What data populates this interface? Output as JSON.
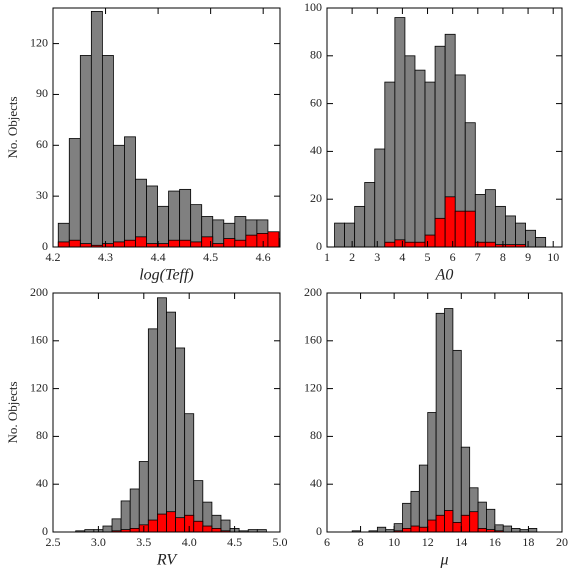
{
  "chart_data": [
    {
      "type": "histogram",
      "x_label": "log(Teff)",
      "y_label": "No. Objects",
      "bins": [
        4.21,
        4.231,
        4.252,
        4.273,
        4.294,
        4.315,
        4.336,
        4.357,
        4.378,
        4.399,
        4.42,
        4.441,
        4.462,
        4.483,
        4.504,
        4.525,
        4.546,
        4.567,
        4.588,
        4.609,
        4.63
      ],
      "series": [
        {
          "color": "#808080",
          "values": [
            14,
            64,
            113,
            139,
            113,
            60,
            65,
            40,
            36,
            24,
            33,
            34,
            25,
            18,
            16,
            14,
            18,
            16,
            16,
            5
          ]
        },
        {
          "color": "#ff0000",
          "values": [
            3,
            4,
            2,
            1,
            2,
            3,
            4,
            6,
            2,
            2,
            4,
            4,
            3,
            6,
            2,
            5,
            4,
            7,
            8,
            9
          ]
        }
      ],
      "xlim": [
        4.2,
        4.632
      ],
      "ylim": [
        0,
        141
      ],
      "xticks": [
        4.2,
        4.3,
        4.4,
        4.5,
        4.6
      ],
      "yticks": [
        0,
        30,
        60,
        90,
        120
      ]
    },
    {
      "type": "histogram",
      "x_label": "A0",
      "bins": [
        1.3,
        1.7,
        2.1,
        2.5,
        2.9,
        3.3,
        3.7,
        4.1,
        4.5,
        4.9,
        5.3,
        5.7,
        6.1,
        6.5,
        6.9,
        7.3,
        7.7,
        8.1,
        8.5,
        8.9,
        9.3,
        9.7
      ],
      "series": [
        {
          "color": "#808080",
          "values": [
            10,
            10,
            17,
            27,
            41,
            69,
            96,
            80,
            74,
            69,
            84,
            89,
            72,
            52,
            22,
            24,
            17,
            13,
            10,
            7,
            4
          ]
        },
        {
          "color": "#ff0000",
          "values": [
            0,
            0,
            0,
            0,
            0,
            2,
            3,
            2,
            2,
            5,
            12,
            21,
            15,
            15,
            2,
            2,
            1,
            1,
            1,
            0,
            0
          ]
        }
      ],
      "xlim": [
        1,
        10.35
      ],
      "ylim": [
        0,
        100
      ],
      "xticks": [
        1,
        2,
        3,
        4,
        5,
        6,
        7,
        8,
        9,
        10
      ],
      "yticks": [
        0,
        20,
        40,
        60,
        80,
        100
      ]
    },
    {
      "type": "histogram",
      "x_label": "RV",
      "y_label": "No. Objects",
      "bins": [
        2.75,
        2.85,
        2.95,
        3.05,
        3.15,
        3.25,
        3.35,
        3.45,
        3.55,
        3.65,
        3.75,
        3.85,
        3.95,
        4.05,
        4.15,
        4.25,
        4.35,
        4.45,
        4.55,
        4.65,
        4.75,
        4.85
      ],
      "series": [
        {
          "color": "#808080",
          "values": [
            1,
            2,
            2,
            5,
            11,
            26,
            36,
            59,
            170,
            196,
            184,
            154,
            99,
            43,
            25,
            14,
            10,
            3,
            1,
            2,
            2
          ]
        },
        {
          "color": "#ff0000",
          "values": [
            0,
            0,
            0,
            0,
            1,
            2,
            3,
            6,
            10,
            15,
            17,
            12,
            14,
            9,
            5,
            3,
            1,
            0,
            0,
            0,
            0
          ]
        }
      ],
      "xlim": [
        2.5,
        5
      ],
      "ylim": [
        0,
        200
      ],
      "xticks": [
        2.5,
        {
          "value": 3,
          "label": "3.0"
        },
        3.5,
        {
          "value": 4,
          "label": "4.0"
        },
        4.5,
        {
          "value": 5,
          "label": "5.0"
        }
      ],
      "yticks": [
        0,
        40,
        80,
        120,
        160,
        200
      ]
    },
    {
      "type": "histogram",
      "x_label": "μ",
      "bins": [
        7.5,
        8,
        8.5,
        9,
        9.5,
        10,
        10.5,
        11,
        11.5,
        12,
        12.5,
        13,
        13.5,
        14,
        14.5,
        15,
        15.5,
        16,
        16.5,
        17,
        17.5,
        18,
        18.5,
        19
      ],
      "series": [
        {
          "color": "#808080",
          "values": [
            1,
            0,
            1,
            4,
            2,
            7,
            24,
            34,
            56,
            100,
            183,
            187,
            152,
            71,
            37,
            25,
            19,
            6,
            5,
            3,
            2,
            3,
            0
          ]
        },
        {
          "color": "#ff0000",
          "values": [
            0,
            0,
            0,
            0,
            0,
            1,
            3,
            5,
            4,
            10,
            14,
            18,
            8,
            14,
            17,
            3,
            2,
            1,
            0,
            0,
            0,
            0,
            0
          ]
        }
      ],
      "xlim": [
        6,
        20
      ],
      "ylim": [
        0,
        200
      ],
      "xticks": [
        6,
        8,
        10,
        12,
        14,
        16,
        18,
        20
      ],
      "yticks": [
        0,
        40,
        80,
        120,
        160,
        200
      ]
    }
  ]
}
